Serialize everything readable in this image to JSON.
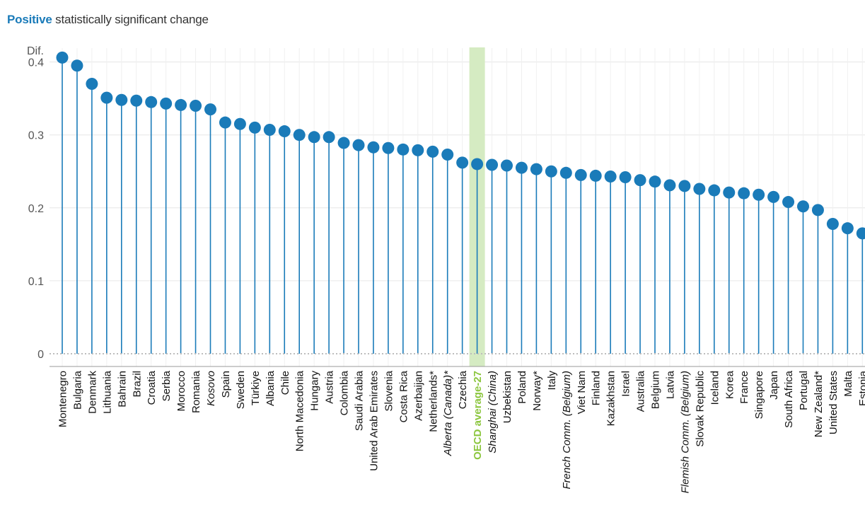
{
  "header": {
    "highlight": "Positive",
    "rest": "statistically significant change"
  },
  "chart_data": {
    "type": "lollipop",
    "ylabel": "Dif.",
    "ylim": [
      0,
      0.41
    ],
    "yticks": [
      "0",
      "0.1",
      "0.2",
      "0.3",
      "0.4"
    ],
    "grid": true,
    "colors": {
      "stem": "#1a7bb9",
      "dot": "#1a7bb9",
      "highlight_band": "#d5ebc2",
      "highlight_text": "#8cc63f"
    },
    "categories": [
      "Montenegro",
      "Bulgaria",
      "Denmark",
      "Lithuania",
      "Bahrain",
      "Brazil",
      "Croatia",
      "Serbia",
      "Morocco",
      "Romania",
      "Kosovo",
      "Spain",
      "Sweden",
      "Türkiye",
      "Albania",
      "Chile",
      "North Macedonia",
      "Hungary",
      "Austria",
      "Colombia",
      "Saudi Arabia",
      "United Arab Emirates",
      "Slovenia",
      "Costa Rica",
      "Azerbaijan",
      "Netherlands*",
      "Alberta (Canada)*",
      "Czechia",
      "OECD average-27",
      "Shanghai (China)",
      "Uzbekistan",
      "Poland",
      "Norway*",
      "Italy",
      "French Comm. (Belgium)",
      "Viet Nam",
      "Finland",
      "Kazakhstan",
      "Israel",
      "Australia",
      "Belgium",
      "Latvia",
      "Flemish Comm. (Belgium)",
      "Slovak Republic",
      "Iceland",
      "Korea",
      "France",
      "Singapore",
      "Japan",
      "South Africa",
      "Portugal",
      "New Zealand*",
      "United States",
      "Malta",
      "Estonia"
    ],
    "values": [
      0.406,
      0.395,
      0.37,
      0.351,
      0.348,
      0.347,
      0.345,
      0.343,
      0.341,
      0.34,
      0.335,
      0.317,
      0.315,
      0.31,
      0.307,
      0.305,
      0.3,
      0.297,
      0.297,
      0.289,
      0.286,
      0.283,
      0.282,
      0.28,
      0.279,
      0.277,
      0.273,
      0.262,
      0.26,
      0.259,
      0.258,
      0.255,
      0.253,
      0.25,
      0.248,
      0.245,
      0.244,
      0.243,
      0.242,
      0.238,
      0.236,
      0.231,
      0.23,
      0.226,
      0.224,
      0.221,
      0.22,
      0.218,
      0.215,
      0.208,
      0.202,
      0.197,
      0.178,
      0.172,
      0.165
    ],
    "italic": [
      "Kosovo",
      "Alberta (Canada)*",
      "Shanghai (China)",
      "French Comm. (Belgium)",
      "Flemish Comm. (Belgium)"
    ],
    "highlight": "OECD average-27"
  }
}
